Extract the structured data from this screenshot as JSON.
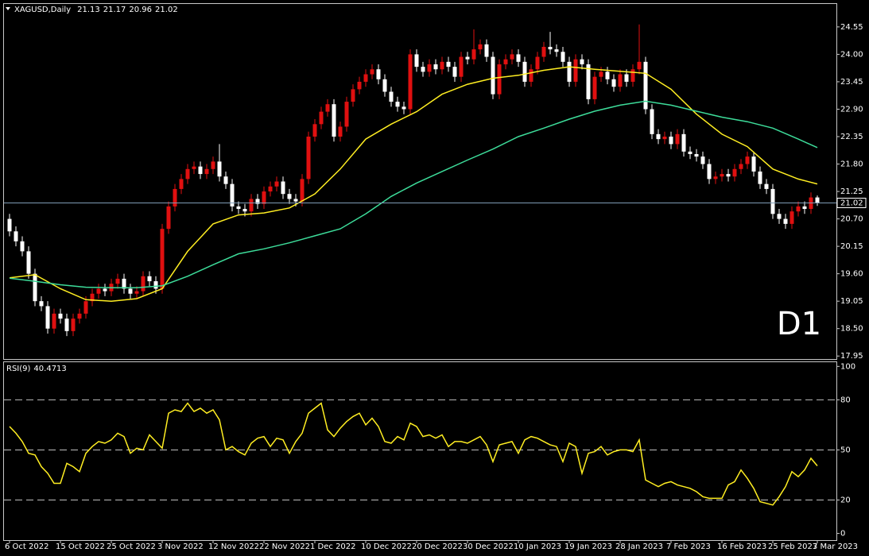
{
  "chart_data": [
    {
      "type": "candlestick",
      "title": "XAGUSD,Daily",
      "annotation": "D1",
      "annotation_color": "#e01010",
      "up_color": "#e01010",
      "down_color": "#ffffff",
      "price_line_color": "#7f9cb6",
      "ylim": [
        17.89,
        25.01
      ],
      "yticks": [
        24.55,
        {
          "value": 24,
          "label": "24.00"
        },
        23.45,
        {
          "value": 22.9,
          "label": "22.90"
        },
        22.35,
        {
          "value": 21.8,
          "label": "21.80"
        },
        21.25,
        {
          "value": 20.7,
          "label": "20.70"
        },
        20.15,
        {
          "value": 19.6,
          "label": "19.60"
        },
        19.05,
        {
          "value": 18.5,
          "label": "18.50"
        },
        17.95
      ],
      "categories": [
        "6 Oct 2022",
        null,
        null,
        null,
        null,
        null,
        null,
        null,
        "15 Oct 2022",
        null,
        null,
        null,
        null,
        null,
        null,
        null,
        "25 Oct 2022",
        null,
        null,
        null,
        null,
        null,
        null,
        null,
        "3 Nov 2022",
        null,
        null,
        null,
        null,
        null,
        null,
        null,
        "12 Nov 2022",
        null,
        null,
        null,
        null,
        null,
        null,
        null,
        "22 Nov 2022",
        null,
        null,
        null,
        null,
        null,
        null,
        null,
        "1 Dec 2022",
        null,
        null,
        null,
        null,
        null,
        null,
        null,
        "10 Dec 2022",
        null,
        null,
        null,
        null,
        null,
        null,
        null,
        "20 Dec 2022",
        null,
        null,
        null,
        null,
        null,
        null,
        null,
        "30 Dec 2022",
        null,
        null,
        null,
        null,
        null,
        null,
        null,
        "10 Jan 2023",
        null,
        null,
        null,
        null,
        null,
        null,
        null,
        "19 Jan 2023",
        null,
        null,
        null,
        null,
        null,
        null,
        null,
        "28 Jan 2023",
        null,
        null,
        null,
        null,
        null,
        null,
        null,
        "7 Feb 2023",
        null,
        null,
        null,
        null,
        null,
        null,
        null,
        "16 Feb 2023",
        null,
        null,
        null,
        null,
        null,
        null,
        null,
        "25 Feb 2023",
        null,
        null,
        null,
        null,
        null,
        null,
        "7 Mar 2023"
      ],
      "open": [
        20.7,
        20.45,
        20.25,
        20.05,
        19.6,
        19.05,
        18.95,
        18.5,
        18.8,
        18.7,
        18.45,
        18.7,
        18.8,
        19.05,
        19.2,
        19.3,
        19.25,
        19.4,
        19.5,
        19.3,
        19.2,
        19.25,
        19.55,
        19.45,
        19.3,
        20.5,
        20.95,
        21.3,
        21.5,
        21.7,
        21.75,
        21.6,
        21.7,
        21.85,
        21.55,
        21.4,
        20.95,
        20.9,
        20.85,
        21.1,
        21.0,
        21.25,
        21.35,
        21.45,
        21.2,
        21.1,
        21.05,
        21.5,
        22.35,
        22.6,
        22.85,
        23.0,
        22.35,
        22.55,
        23.05,
        23.3,
        23.45,
        23.6,
        23.7,
        23.5,
        23.25,
        23.05,
        22.95,
        22.9,
        24.0,
        23.75,
        23.65,
        23.8,
        23.7,
        23.85,
        23.75,
        23.55,
        23.95,
        23.9,
        24.1,
        24.2,
        23.95,
        23.2,
        23.8,
        23.9,
        24.0,
        23.85,
        23.45,
        23.7,
        23.95,
        24.15,
        24.1,
        24.05,
        23.85,
        23.45,
        23.9,
        23.8,
        23.1,
        23.55,
        23.65,
        23.5,
        23.35,
        23.6,
        23.45,
        23.7,
        23.85,
        22.9,
        22.4,
        22.3,
        22.35,
        22.2,
        22.4,
        22.05,
        22.0,
        21.95,
        21.8,
        21.5,
        21.55,
        21.6,
        21.55,
        21.7,
        21.8,
        21.95,
        21.65,
        21.4,
        21.3,
        20.8,
        20.7,
        20.6,
        20.85,
        20.95,
        20.9,
        21.13
      ],
      "high": [
        20.8,
        20.55,
        20.35,
        20.15,
        19.7,
        19.15,
        19.05,
        18.9,
        18.9,
        18.8,
        18.8,
        18.9,
        19.15,
        19.3,
        19.4,
        19.4,
        19.5,
        19.6,
        19.6,
        19.4,
        19.35,
        19.65,
        19.65,
        19.55,
        20.6,
        21.05,
        21.4,
        21.6,
        21.8,
        21.85,
        21.85,
        21.8,
        21.95,
        22.2,
        21.65,
        21.5,
        21.05,
        21.0,
        21.2,
        21.2,
        21.35,
        21.45,
        21.55,
        21.55,
        21.3,
        21.2,
        21.6,
        22.45,
        22.7,
        22.95,
        23.1,
        23.1,
        22.65,
        23.15,
        23.4,
        23.55,
        23.7,
        23.8,
        23.8,
        23.6,
        23.35,
        23.15,
        23.05,
        24.1,
        24.1,
        23.85,
        23.9,
        23.9,
        23.95,
        23.95,
        23.85,
        24.05,
        24.05,
        24.5,
        24.3,
        24.3,
        24.05,
        23.9,
        24.0,
        24.1,
        24.1,
        23.95,
        23.8,
        24.05,
        24.25,
        24.45,
        24.2,
        24.15,
        23.95,
        24.0,
        24.0,
        23.9,
        23.65,
        23.75,
        23.75,
        23.6,
        23.7,
        23.7,
        23.8,
        24.6,
        23.95,
        23.0,
        22.5,
        22.45,
        22.45,
        22.5,
        22.5,
        22.15,
        22.1,
        22.05,
        21.9,
        21.65,
        21.7,
        21.7,
        21.8,
        21.9,
        22.05,
        22.05,
        21.75,
        21.5,
        21.4,
        20.9,
        20.8,
        20.95,
        21.05,
        21.05,
        21.23,
        21.17
      ],
      "low": [
        20.35,
        20.15,
        19.95,
        19.5,
        18.95,
        18.85,
        18.4,
        18.4,
        18.6,
        18.35,
        18.35,
        18.6,
        18.7,
        18.95,
        19.1,
        19.15,
        19.15,
        19.3,
        19.2,
        19.1,
        19.1,
        19.15,
        19.35,
        19.2,
        19.2,
        20.4,
        20.85,
        21.2,
        21.4,
        21.6,
        21.5,
        21.5,
        21.6,
        21.45,
        21.3,
        20.85,
        20.8,
        20.75,
        20.75,
        20.9,
        20.9,
        21.15,
        21.25,
        21.1,
        21.0,
        20.95,
        20.95,
        21.4,
        22.25,
        22.5,
        22.75,
        22.25,
        22.25,
        22.45,
        22.95,
        23.2,
        23.35,
        23.5,
        23.4,
        23.15,
        22.95,
        22.85,
        22.8,
        22.8,
        23.65,
        23.55,
        23.55,
        23.6,
        23.6,
        23.65,
        23.45,
        23.45,
        23.8,
        23.8,
        24.0,
        23.85,
        23.1,
        23.1,
        23.7,
        23.8,
        23.75,
        23.35,
        23.35,
        23.6,
        23.85,
        24.0,
        23.95,
        23.75,
        23.35,
        23.35,
        23.7,
        23.0,
        23.0,
        23.45,
        23.4,
        23.25,
        23.25,
        23.35,
        23.35,
        23.6,
        22.8,
        22.3,
        22.2,
        22.2,
        22.1,
        22.1,
        21.95,
        21.9,
        21.85,
        21.7,
        21.4,
        21.4,
        21.45,
        21.45,
        21.45,
        21.6,
        21.7,
        21.55,
        21.3,
        21.2,
        20.7,
        20.6,
        20.5,
        20.5,
        20.75,
        20.8,
        20.8,
        20.96
      ],
      "close": [
        20.45,
        20.25,
        20.05,
        19.6,
        19.05,
        18.95,
        18.5,
        18.8,
        18.7,
        18.45,
        18.7,
        18.8,
        19.05,
        19.2,
        19.3,
        19.25,
        19.4,
        19.5,
        19.3,
        19.2,
        19.25,
        19.55,
        19.45,
        19.3,
        20.5,
        20.95,
        21.3,
        21.5,
        21.7,
        21.75,
        21.6,
        21.7,
        21.85,
        21.55,
        21.4,
        20.95,
        20.9,
        20.85,
        21.1,
        21.0,
        21.25,
        21.35,
        21.45,
        21.2,
        21.1,
        21.05,
        21.5,
        22.35,
        22.6,
        22.85,
        23.0,
        22.35,
        22.55,
        23.05,
        23.3,
        23.45,
        23.6,
        23.7,
        23.5,
        23.25,
        23.05,
        22.95,
        22.9,
        24.0,
        23.75,
        23.65,
        23.8,
        23.7,
        23.85,
        23.75,
        23.55,
        23.95,
        23.9,
        24.1,
        24.2,
        23.95,
        23.2,
        23.8,
        23.9,
        24.0,
        23.85,
        23.45,
        23.7,
        23.95,
        24.15,
        24.1,
        24.05,
        23.85,
        23.45,
        23.9,
        23.8,
        23.1,
        23.55,
        23.65,
        23.5,
        23.35,
        23.6,
        23.45,
        23.7,
        23.85,
        22.9,
        22.4,
        22.3,
        22.35,
        22.2,
        22.4,
        22.05,
        22.0,
        21.95,
        21.8,
        21.5,
        21.55,
        21.6,
        21.55,
        21.7,
        21.8,
        21.95,
        21.65,
        21.4,
        21.3,
        20.8,
        20.7,
        20.6,
        20.85,
        20.95,
        20.9,
        21.13,
        21.02
      ],
      "series": [
        {
          "color": "#ffee22",
          "x": [
            0,
            4,
            8,
            12,
            16,
            20,
            24,
            28,
            32,
            36,
            40,
            44,
            48,
            52,
            56,
            60,
            64,
            68,
            72,
            76,
            80,
            84,
            88,
            92,
            96,
            100,
            104,
            108,
            112,
            116,
            120,
            124,
            127
          ],
          "values": [
            19.52,
            19.58,
            19.3,
            19.08,
            19.05,
            19.1,
            19.3,
            20.05,
            20.6,
            20.78,
            20.82,
            20.92,
            21.2,
            21.7,
            22.3,
            22.6,
            22.85,
            23.2,
            23.4,
            23.52,
            23.58,
            23.68,
            23.75,
            23.7,
            23.66,
            23.62,
            23.3,
            22.8,
            22.4,
            22.15,
            21.7,
            21.5,
            21.4
          ]
        },
        {
          "color": "#3ddc9a",
          "x": [
            0,
            4,
            8,
            12,
            16,
            20,
            24,
            28,
            32,
            36,
            40,
            44,
            48,
            52,
            56,
            60,
            64,
            68,
            72,
            76,
            80,
            84,
            88,
            92,
            96,
            100,
            104,
            108,
            112,
            116,
            120,
            124,
            127
          ],
          "values": [
            19.51,
            19.45,
            19.38,
            19.33,
            19.32,
            19.32,
            19.36,
            19.55,
            19.78,
            20.0,
            20.1,
            20.22,
            20.36,
            20.5,
            20.8,
            21.15,
            21.42,
            21.65,
            21.88,
            22.1,
            22.35,
            22.52,
            22.7,
            22.86,
            22.98,
            23.06,
            22.98,
            22.86,
            22.74,
            22.65,
            22.52,
            22.3,
            22.13
          ]
        }
      ]
    },
    {
      "type": "line",
      "title": "RSI(9)",
      "color": "#ffee22",
      "ylim": [
        -4,
        103
      ],
      "yticks": [
        100,
        80,
        50,
        20,
        0
      ],
      "levels": [
        80,
        50,
        20
      ],
      "values": [
        64,
        60,
        55,
        48,
        47,
        40,
        36,
        30,
        30,
        42,
        40,
        37,
        48,
        52,
        55,
        54,
        56,
        60,
        58,
        48,
        51,
        50,
        59,
        55,
        51,
        72,
        74,
        73,
        78,
        73,
        75,
        72,
        74,
        68,
        50,
        52,
        49,
        47,
        54,
        57,
        58,
        52,
        57,
        56,
        48,
        55,
        60,
        72,
        75,
        78,
        62,
        58,
        63,
        67,
        70,
        72,
        65,
        69,
        64,
        55,
        54,
        58,
        56,
        66,
        64,
        58,
        59,
        57,
        59,
        52,
        55,
        55,
        54,
        56,
        58,
        53,
        43,
        53,
        54,
        55,
        48,
        56,
        58,
        57,
        55,
        53,
        52,
        43,
        54,
        52,
        36,
        48,
        49,
        52,
        47,
        49,
        50,
        50,
        49,
        56,
        32,
        30,
        28,
        30,
        31,
        29,
        28,
        27,
        25,
        22,
        21,
        21,
        21,
        29,
        31,
        38,
        33,
        27,
        19,
        18,
        17,
        22,
        28,
        37,
        34,
        38,
        45,
        40.4713
      ]
    }
  ]
}
